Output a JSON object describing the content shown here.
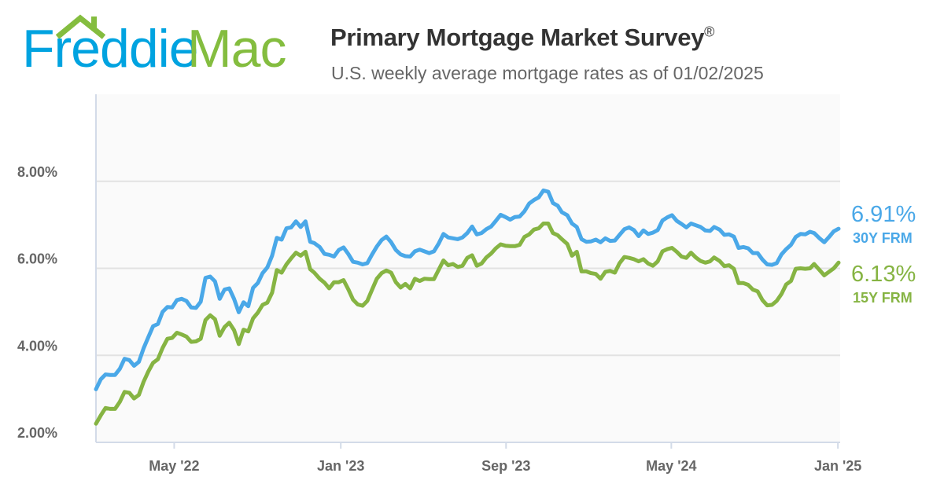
{
  "logo": {
    "word1": "Freddie",
    "word2": "Mac"
  },
  "header": {
    "title": "Primary Mortgage Market Survey",
    "title_mark": "®",
    "subtitle": "U.S. weekly average mortgage rates as of 01/02/2025"
  },
  "colors": {
    "blue": "#4aa8e8",
    "green": "#86b443",
    "grid": "#e2e2e2",
    "plot_bg": "#fafafa",
    "axis": "#d3dbe8"
  },
  "chart_data": {
    "type": "line",
    "title": "Primary Mortgage Market Survey®",
    "subtitle": "U.S. weekly average mortgage rates as of 01/02/2025",
    "xlabel": "",
    "ylabel": "",
    "ylim": [
      2,
      10
    ],
    "xlim": [
      "2022-01-06",
      "2025-01-02"
    ],
    "grid": true,
    "y_ticks": [
      {
        "value": 2,
        "label": "2.00%"
      },
      {
        "value": 4,
        "label": "4.00%"
      },
      {
        "value": 6,
        "label": "6.00%"
      },
      {
        "value": 8,
        "label": "8.00%"
      }
    ],
    "x_ticks": [
      {
        "date": "2022-05-01",
        "label": "May '22"
      },
      {
        "date": "2023-01-01",
        "label": "Jan '23"
      },
      {
        "date": "2023-09-01",
        "label": "Sep '23"
      },
      {
        "date": "2024-05-01",
        "label": "May '24"
      },
      {
        "date": "2025-01-01",
        "label": "Jan '25"
      }
    ],
    "x": [
      "2022-01-06",
      "2022-01-13",
      "2022-01-20",
      "2022-01-27",
      "2022-02-03",
      "2022-02-10",
      "2022-02-17",
      "2022-02-24",
      "2022-03-03",
      "2022-03-10",
      "2022-03-17",
      "2022-03-24",
      "2022-03-31",
      "2022-04-07",
      "2022-04-14",
      "2022-04-21",
      "2022-04-28",
      "2022-05-05",
      "2022-05-12",
      "2022-05-19",
      "2022-05-26",
      "2022-06-02",
      "2022-06-09",
      "2022-06-16",
      "2022-06-23",
      "2022-06-30",
      "2022-07-07",
      "2022-07-14",
      "2022-07-21",
      "2022-07-28",
      "2022-08-04",
      "2022-08-11",
      "2022-08-18",
      "2022-08-25",
      "2022-09-01",
      "2022-09-08",
      "2022-09-15",
      "2022-09-22",
      "2022-09-29",
      "2022-10-06",
      "2022-10-13",
      "2022-10-20",
      "2022-10-27",
      "2022-11-03",
      "2022-11-10",
      "2022-11-17",
      "2022-11-23",
      "2022-12-01",
      "2022-12-08",
      "2022-12-15",
      "2022-12-22",
      "2022-12-29",
      "2023-01-05",
      "2023-01-12",
      "2023-01-19",
      "2023-01-26",
      "2023-02-02",
      "2023-02-09",
      "2023-02-16",
      "2023-02-23",
      "2023-03-02",
      "2023-03-09",
      "2023-03-16",
      "2023-03-23",
      "2023-03-30",
      "2023-04-06",
      "2023-04-13",
      "2023-04-20",
      "2023-04-27",
      "2023-05-04",
      "2023-05-11",
      "2023-05-18",
      "2023-05-25",
      "2023-06-01",
      "2023-06-08",
      "2023-06-15",
      "2023-06-22",
      "2023-06-29",
      "2023-07-06",
      "2023-07-13",
      "2023-07-20",
      "2023-07-27",
      "2023-08-03",
      "2023-08-10",
      "2023-08-17",
      "2023-08-24",
      "2023-08-31",
      "2023-09-07",
      "2023-09-14",
      "2023-09-21",
      "2023-09-28",
      "2023-10-05",
      "2023-10-12",
      "2023-10-19",
      "2023-10-26",
      "2023-11-02",
      "2023-11-09",
      "2023-11-16",
      "2023-11-22",
      "2023-11-30",
      "2023-12-07",
      "2023-12-14",
      "2023-12-21",
      "2023-12-28",
      "2024-01-04",
      "2024-01-11",
      "2024-01-18",
      "2024-01-25",
      "2024-02-01",
      "2024-02-08",
      "2024-02-15",
      "2024-02-22",
      "2024-02-29",
      "2024-03-07",
      "2024-03-14",
      "2024-03-21",
      "2024-03-28",
      "2024-04-04",
      "2024-04-11",
      "2024-04-18",
      "2024-04-25",
      "2024-05-02",
      "2024-05-09",
      "2024-05-16",
      "2024-05-23",
      "2024-05-30",
      "2024-06-06",
      "2024-06-13",
      "2024-06-20",
      "2024-06-27",
      "2024-07-03",
      "2024-07-11",
      "2024-07-18",
      "2024-07-25",
      "2024-08-01",
      "2024-08-08",
      "2024-08-15",
      "2024-08-22",
      "2024-08-29",
      "2024-09-05",
      "2024-09-12",
      "2024-09-19",
      "2024-09-26",
      "2024-10-03",
      "2024-10-10",
      "2024-10-17",
      "2024-10-24",
      "2024-10-31",
      "2024-11-07",
      "2024-11-14",
      "2024-11-21",
      "2024-11-27",
      "2024-12-05",
      "2024-12-12",
      "2024-12-19",
      "2024-12-26",
      "2025-01-02"
    ],
    "series": [
      {
        "name": "30Y FRM",
        "end_label": "6.91%",
        "color": "#4aa8e8",
        "values": [
          3.22,
          3.45,
          3.56,
          3.55,
          3.55,
          3.69,
          3.92,
          3.89,
          3.76,
          3.85,
          4.16,
          4.42,
          4.67,
          4.72,
          5.0,
          5.11,
          5.1,
          5.27,
          5.3,
          5.25,
          5.1,
          5.09,
          5.23,
          5.78,
          5.81,
          5.7,
          5.3,
          5.51,
          5.54,
          5.3,
          4.99,
          5.22,
          5.13,
          5.55,
          5.66,
          5.89,
          6.02,
          6.29,
          6.7,
          6.66,
          6.92,
          6.94,
          7.08,
          6.95,
          7.08,
          6.61,
          6.58,
          6.49,
          6.33,
          6.31,
          6.27,
          6.42,
          6.48,
          6.33,
          6.15,
          6.13,
          6.09,
          6.12,
          6.32,
          6.5,
          6.65,
          6.73,
          6.6,
          6.42,
          6.32,
          6.28,
          6.27,
          6.39,
          6.43,
          6.39,
          6.35,
          6.39,
          6.57,
          6.79,
          6.71,
          6.69,
          6.67,
          6.71,
          6.81,
          6.96,
          6.78,
          6.81,
          6.9,
          6.96,
          7.09,
          7.23,
          7.18,
          7.12,
          7.18,
          7.19,
          7.31,
          7.49,
          7.57,
          7.63,
          7.79,
          7.76,
          7.5,
          7.44,
          7.29,
          7.22,
          7.03,
          6.95,
          6.67,
          6.61,
          6.62,
          6.66,
          6.6,
          6.69,
          6.63,
          6.64,
          6.77,
          6.9,
          6.94,
          6.88,
          6.74,
          6.87,
          6.79,
          6.82,
          6.88,
          7.1,
          7.17,
          7.22,
          7.09,
          7.02,
          6.94,
          7.03,
          6.99,
          6.95,
          6.87,
          6.86,
          6.95,
          6.89,
          6.77,
          6.78,
          6.73,
          6.47,
          6.49,
          6.46,
          6.35,
          6.35,
          6.2,
          6.09,
          6.08,
          6.12,
          6.32,
          6.44,
          6.54,
          6.72,
          6.79,
          6.78,
          6.84,
          6.81,
          6.69,
          6.6,
          6.72,
          6.85,
          6.91
        ]
      },
      {
        "name": "15Y FRM",
        "end_label": "6.13%",
        "color": "#86b443",
        "values": [
          2.43,
          2.62,
          2.79,
          2.77,
          2.77,
          2.93,
          3.16,
          3.14,
          3.01,
          3.09,
          3.39,
          3.63,
          3.83,
          3.91,
          4.17,
          4.38,
          4.4,
          4.52,
          4.48,
          4.43,
          4.31,
          4.32,
          4.38,
          4.81,
          4.92,
          4.83,
          4.45,
          4.65,
          4.75,
          4.58,
          4.26,
          4.59,
          4.55,
          4.85,
          4.98,
          5.16,
          5.21,
          5.44,
          5.96,
          5.9,
          6.09,
          6.23,
          6.36,
          6.29,
          6.38,
          5.98,
          5.9,
          5.76,
          5.67,
          5.54,
          5.68,
          5.68,
          5.73,
          5.52,
          5.28,
          5.17,
          5.14,
          5.25,
          5.51,
          5.76,
          5.89,
          5.95,
          5.9,
          5.68,
          5.56,
          5.64,
          5.54,
          5.76,
          5.71,
          5.76,
          5.75,
          5.75,
          5.97,
          6.18,
          6.07,
          6.1,
          6.03,
          6.06,
          6.24,
          6.3,
          6.06,
          6.11,
          6.25,
          6.34,
          6.46,
          6.55,
          6.52,
          6.51,
          6.51,
          6.54,
          6.72,
          6.78,
          6.89,
          6.92,
          7.03,
          7.03,
          6.81,
          6.76,
          6.67,
          6.56,
          6.29,
          6.38,
          5.93,
          5.93,
          5.89,
          5.87,
          5.76,
          5.92,
          5.94,
          5.9,
          6.12,
          6.26,
          6.24,
          6.21,
          6.16,
          6.21,
          6.11,
          6.06,
          6.16,
          6.39,
          6.44,
          6.47,
          6.38,
          6.27,
          6.24,
          6.36,
          6.25,
          6.17,
          6.13,
          6.16,
          6.25,
          6.17,
          6.05,
          6.07,
          5.99,
          5.66,
          5.66,
          5.62,
          5.51,
          5.47,
          5.27,
          5.15,
          5.16,
          5.25,
          5.41,
          5.63,
          5.71,
          5.99,
          6.0,
          5.99,
          6.0,
          6.1,
          5.96,
          5.84,
          5.92,
          6.0,
          6.13
        ]
      }
    ]
  }
}
